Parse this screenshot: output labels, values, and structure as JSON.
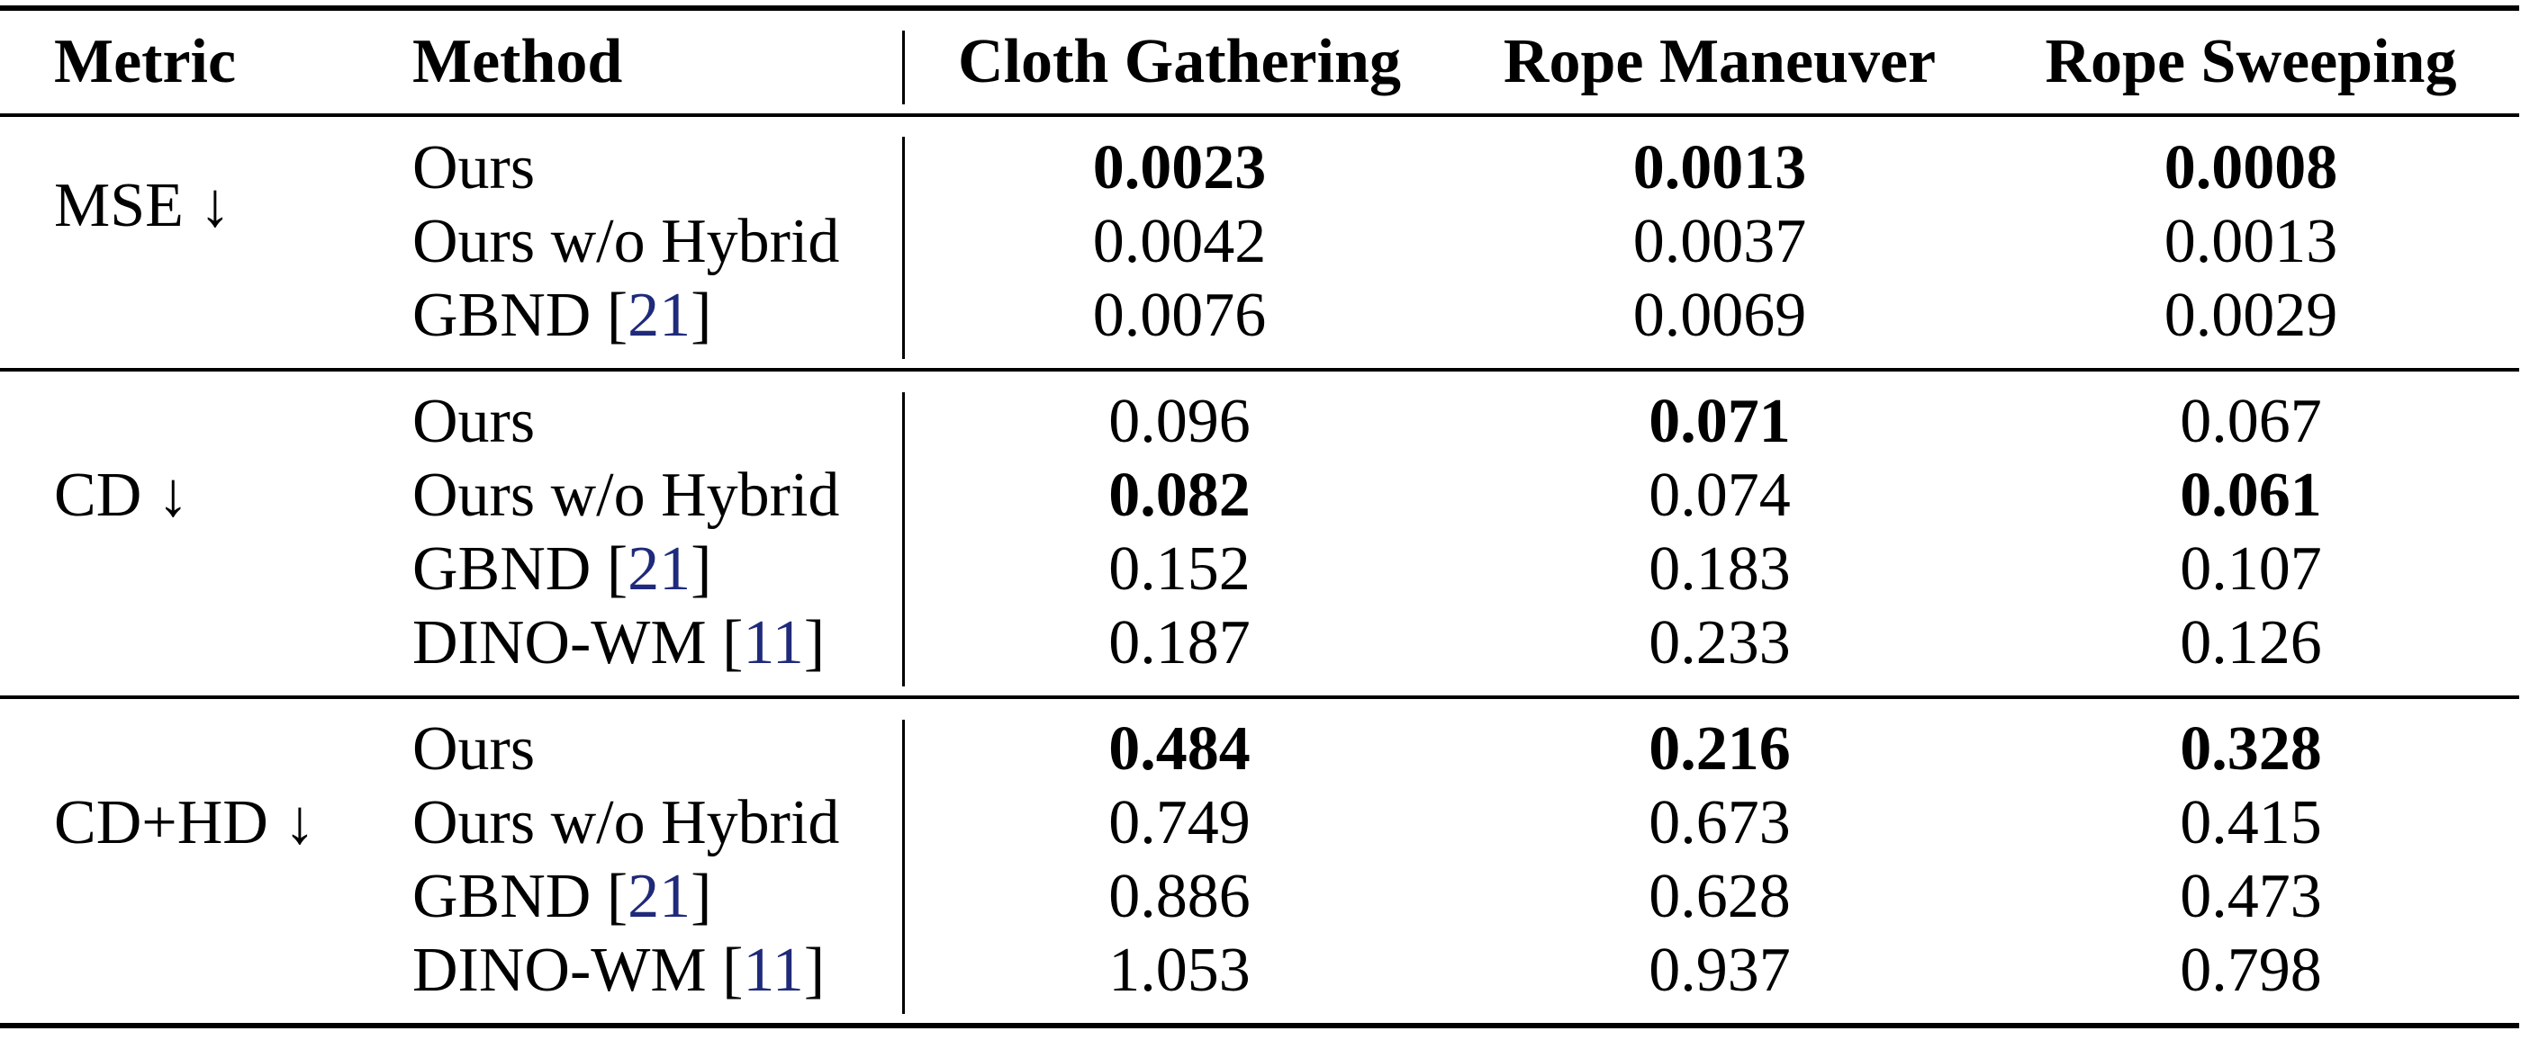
{
  "table": {
    "headers": {
      "metric": "Metric",
      "method": "Method",
      "col1": "Cloth Gathering",
      "col2": "Rope Maneuver",
      "col3": "Rope Sweeping"
    },
    "groups": [
      {
        "metric": "MSE ↓",
        "rows": [
          {
            "method": "Ours",
            "cite": "",
            "values": [
              "0.0023",
              "0.0013",
              "0.0008"
            ],
            "best": [
              true,
              true,
              true
            ]
          },
          {
            "method": "Ours w/o Hybrid",
            "cite": "",
            "values": [
              "0.0042",
              "0.0037",
              "0.0013"
            ],
            "best": [
              false,
              false,
              false
            ]
          },
          {
            "method": "GBND [",
            "cite": "21",
            "close": "]",
            "values": [
              "0.0076",
              "0.0069",
              "0.0029"
            ],
            "best": [
              false,
              false,
              false
            ]
          }
        ]
      },
      {
        "metric": "CD ↓",
        "rows": [
          {
            "method": "Ours",
            "cite": "",
            "values": [
              "0.096",
              "0.071",
              "0.067"
            ],
            "best": [
              false,
              true,
              false
            ]
          },
          {
            "method": "Ours w/o Hybrid",
            "cite": "",
            "values": [
              "0.082",
              "0.074",
              "0.061"
            ],
            "best": [
              true,
              false,
              true
            ]
          },
          {
            "method": "GBND [",
            "cite": "21",
            "close": "]",
            "values": [
              "0.152",
              "0.183",
              "0.107"
            ],
            "best": [
              false,
              false,
              false
            ]
          },
          {
            "method": "DINO-WM [",
            "cite": "11",
            "close": "]",
            "values": [
              "0.187",
              "0.233",
              "0.126"
            ],
            "best": [
              false,
              false,
              false
            ]
          }
        ]
      },
      {
        "metric": "CD+HD ↓",
        "rows": [
          {
            "method": "Ours",
            "cite": "",
            "values": [
              "0.484",
              "0.216",
              "0.328"
            ],
            "best": [
              true,
              true,
              true
            ]
          },
          {
            "method": "Ours w/o Hybrid",
            "cite": "",
            "values": [
              "0.749",
              "0.673",
              "0.415"
            ],
            "best": [
              false,
              false,
              false
            ]
          },
          {
            "method": "GBND [",
            "cite": "21",
            "close": "]",
            "values": [
              "0.886",
              "0.628",
              "0.473"
            ],
            "best": [
              false,
              false,
              false
            ]
          },
          {
            "method": "DINO-WM [",
            "cite": "11",
            "close": "]",
            "values": [
              "1.053",
              "0.937",
              "0.798"
            ],
            "best": [
              false,
              false,
              false
            ]
          }
        ]
      }
    ]
  }
}
